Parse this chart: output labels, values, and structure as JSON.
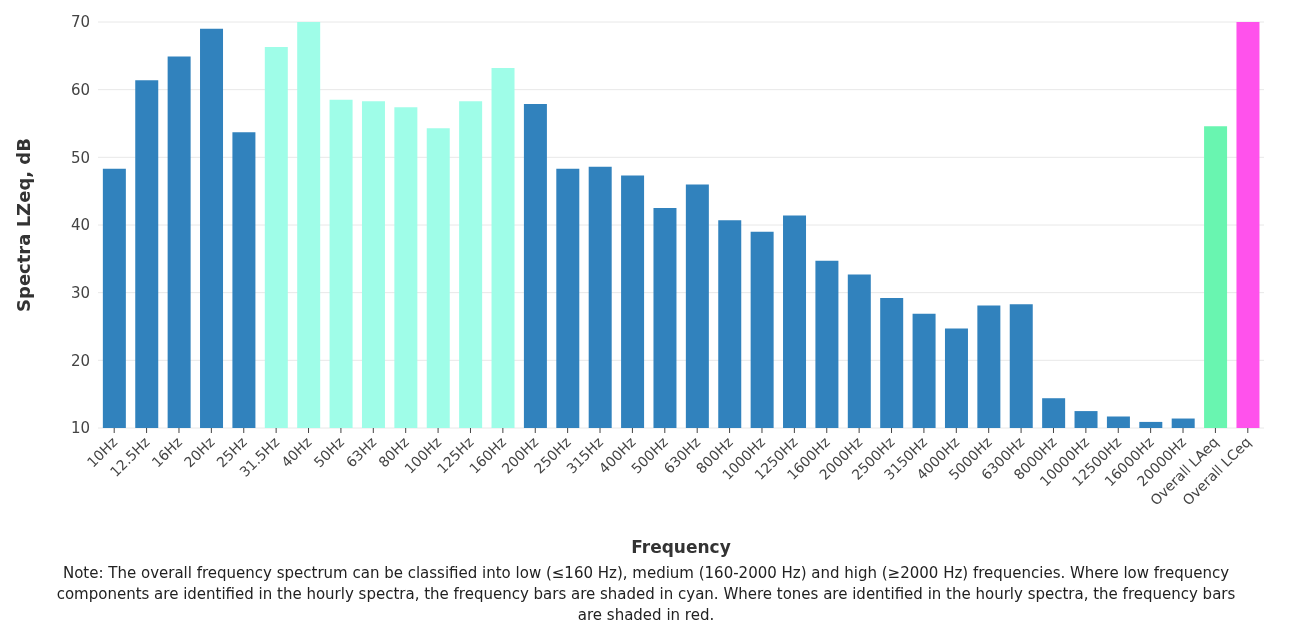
{
  "chart_data": {
    "type": "bar",
    "xlabel": "Frequency",
    "ylabel": "Spectra LZeq, dB",
    "categories": [
      "10Hz",
      "12.5Hz",
      "16Hz",
      "20Hz",
      "25Hz",
      "31.5Hz",
      "40Hz",
      "50Hz",
      "63Hz",
      "80Hz",
      "100Hz",
      "125Hz",
      "160Hz",
      "200Hz",
      "250Hz",
      "315Hz",
      "400Hz",
      "500Hz",
      "630Hz",
      "800Hz",
      "1000Hz",
      "1250Hz",
      "1600Hz",
      "2000Hz",
      "2500Hz",
      "3150Hz",
      "4000Hz",
      "5000Hz",
      "6300Hz",
      "8000Hz",
      "10000Hz",
      "12500Hz",
      "16000Hz",
      "20000Hz",
      "Overall LAeq",
      "Overall LCeq"
    ],
    "values": [
      48.3,
      61.4,
      64.9,
      69.0,
      53.7,
      66.3,
      70.0,
      58.5,
      58.3,
      57.4,
      54.3,
      58.3,
      63.2,
      57.9,
      48.3,
      48.6,
      47.3,
      42.5,
      46.0,
      40.7,
      39.0,
      41.4,
      34.7,
      32.7,
      29.2,
      26.9,
      24.7,
      28.1,
      28.3,
      14.4,
      12.5,
      11.7,
      10.9,
      11.4,
      54.6,
      70.0
    ],
    "colors": [
      "#3182bd",
      "#3182bd",
      "#3182bd",
      "#3182bd",
      "#3182bd",
      "#9ffde8",
      "#9ffde8",
      "#9ffde8",
      "#9ffde8",
      "#9ffde8",
      "#9ffde8",
      "#9ffde8",
      "#9ffde8",
      "#3182bd",
      "#3182bd",
      "#3182bd",
      "#3182bd",
      "#3182bd",
      "#3182bd",
      "#3182bd",
      "#3182bd",
      "#3182bd",
      "#3182bd",
      "#3182bd",
      "#3182bd",
      "#3182bd",
      "#3182bd",
      "#3182bd",
      "#3182bd",
      "#3182bd",
      "#3182bd",
      "#3182bd",
      "#3182bd",
      "#3182bd",
      "#69f5b0",
      "#ff52ec"
    ],
    "ylim": [
      10,
      70
    ],
    "yticks": [
      10,
      20,
      30,
      40,
      50,
      60,
      70
    ],
    "grid": "y",
    "annotations": [
      "Note: The overall frequency spectrum can be classified into low (≤160 Hz), medium (160-2000 Hz) and high (≥2000 Hz) frequencies. Where low frequency components are identified in the hourly spectra, the frequency bars are shaded in cyan. Where tones are identified in the hourly spectra, the frequency bars are shaded in red."
    ]
  }
}
